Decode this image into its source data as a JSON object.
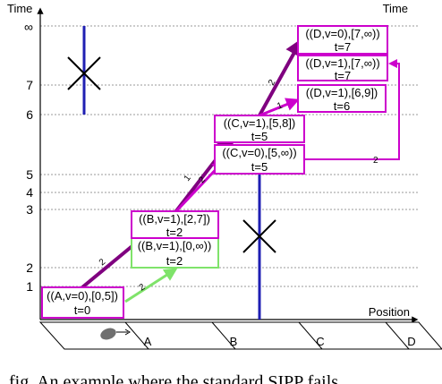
{
  "axes": {
    "y_label": "Time",
    "x_label": "Position",
    "y_ticks": [
      "∞",
      "7",
      "6",
      "5",
      "4",
      "3",
      "2",
      "1"
    ],
    "positions": [
      "A",
      "B",
      "C",
      "D"
    ]
  },
  "nodes": [
    {
      "id": "n1",
      "line1": "((A,v=0),[0,5])",
      "line2": "t=0",
      "color": "#cc00cc"
    },
    {
      "id": "n2",
      "line1": "((B,v=1),[0,∞))",
      "line2": "t=2",
      "color": "#7fe36a"
    },
    {
      "id": "n3",
      "line1": "((B,v=1),[2,7])",
      "line2": "t=2",
      "color": "#cc00cc"
    },
    {
      "id": "n4",
      "line1": "((C,v=0),[5,∞))",
      "line2": "t=5",
      "color": "#cc00cc"
    },
    {
      "id": "n5",
      "line1": "((C,v=1),[5,8])",
      "line2": "t=5",
      "color": "#cc00cc"
    },
    {
      "id": "n6",
      "line1": "((D,v=1),[6,9])",
      "line2": "t=6",
      "color": "#cc00cc"
    },
    {
      "id": "n7",
      "line1": "((D,v=1),[7,∞))",
      "line2": "t=7",
      "color": "#cc00cc"
    },
    {
      "id": "n8",
      "line1": "((D,v=0),[7,∞))",
      "line2": "t=7",
      "color": "#cc00cc"
    }
  ],
  "edges": [
    {
      "id": "e1",
      "label": "2",
      "color": "#7fe36a"
    },
    {
      "id": "e2",
      "label": "2",
      "color": "#7f007f"
    },
    {
      "id": "e3",
      "label": "1",
      "color": "#7f007f"
    },
    {
      "id": "e4",
      "label": "2",
      "color": "#cc00cc"
    },
    {
      "id": "e5",
      "label": "2",
      "color": "#7f007f"
    },
    {
      "id": "e6",
      "label": "1",
      "color": "#cc00cc"
    },
    {
      "id": "e7",
      "label": "2",
      "color": "#cc00cc"
    }
  ],
  "colors": {
    "obstacle": "#1f1fb3",
    "cross": "#000000",
    "grid": "#9a9a9a",
    "axis": "#000000"
  },
  "icons": {
    "agent": "robot-mouse-icon",
    "blocked": "cross-icon"
  },
  "caption": "fig. An example where the standard SIPP fails"
}
